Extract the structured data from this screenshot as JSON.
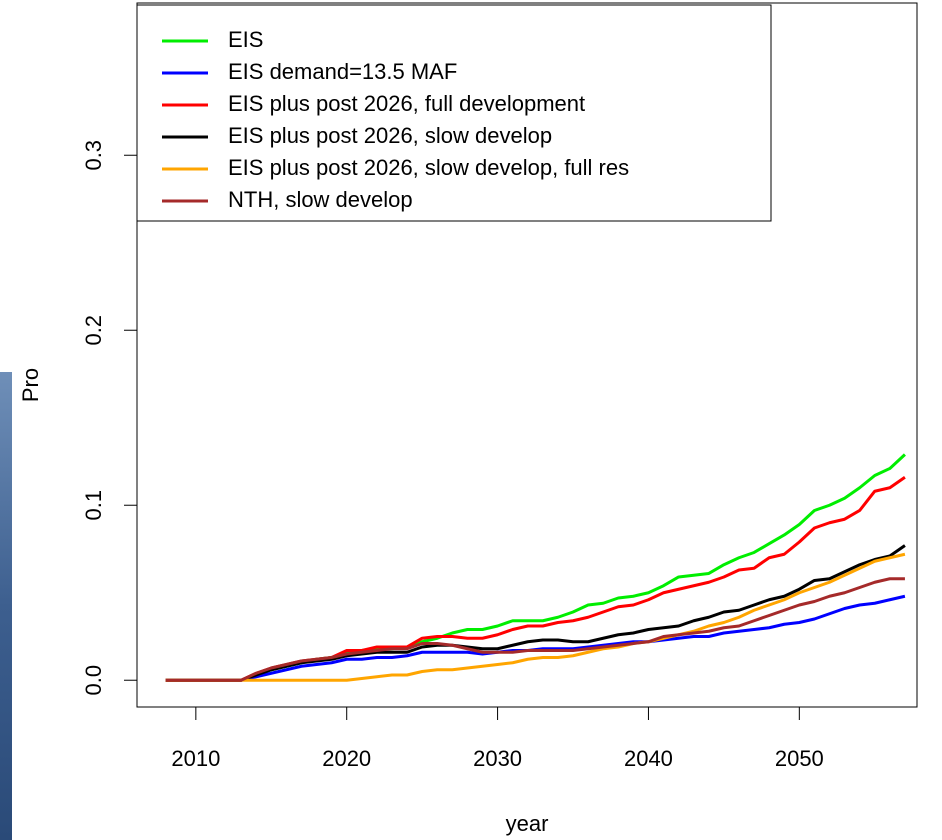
{
  "chart_data": {
    "type": "line",
    "xlabel": "year",
    "ylabel": "Pro",
    "x": [
      2008,
      2009,
      2010,
      2011,
      2012,
      2013,
      2014,
      2015,
      2016,
      2017,
      2018,
      2019,
      2020,
      2021,
      2022,
      2023,
      2024,
      2025,
      2026,
      2027,
      2028,
      2029,
      2030,
      2031,
      2032,
      2033,
      2034,
      2035,
      2036,
      2037,
      2038,
      2039,
      2040,
      2041,
      2042,
      2043,
      2044,
      2045,
      2046,
      2047,
      2048,
      2049,
      2050,
      2051,
      2052,
      2053,
      2054,
      2055,
      2056,
      2057
    ],
    "series": [
      {
        "name": "EIS",
        "color": "#00ee00",
        "values": [
          0,
          0,
          0,
          0,
          0,
          0,
          0.003,
          0.006,
          0.008,
          0.01,
          0.012,
          0.013,
          0.016,
          0.017,
          0.018,
          0.018,
          0.019,
          0.022,
          0.024,
          0.027,
          0.029,
          0.029,
          0.031,
          0.034,
          0.034,
          0.034,
          0.036,
          0.039,
          0.043,
          0.044,
          0.047,
          0.048,
          0.05,
          0.054,
          0.059,
          0.06,
          0.061,
          0.066,
          0.07,
          0.073,
          0.078,
          0.083,
          0.089,
          0.097,
          0.1,
          0.104,
          0.11,
          0.117,
          0.121,
          0.129
        ]
      },
      {
        "name": "EIS demand=13.5 MAF",
        "color": "#0000ff",
        "values": [
          0,
          0,
          0,
          0,
          0,
          0,
          0.002,
          0.004,
          0.006,
          0.008,
          0.009,
          0.01,
          0.012,
          0.012,
          0.013,
          0.013,
          0.014,
          0.016,
          0.016,
          0.016,
          0.016,
          0.015,
          0.016,
          0.017,
          0.017,
          0.018,
          0.018,
          0.018,
          0.019,
          0.02,
          0.021,
          0.022,
          0.022,
          0.023,
          0.024,
          0.025,
          0.025,
          0.027,
          0.028,
          0.029,
          0.03,
          0.032,
          0.033,
          0.035,
          0.038,
          0.041,
          0.043,
          0.044,
          0.046,
          0.048
        ]
      },
      {
        "name": "EIS plus post 2026, full development",
        "color": "#ff0000",
        "values": [
          0,
          0,
          0,
          0,
          0,
          0,
          0.004,
          0.007,
          0.009,
          0.011,
          0.012,
          0.013,
          0.017,
          0.017,
          0.019,
          0.019,
          0.019,
          0.024,
          0.025,
          0.025,
          0.024,
          0.024,
          0.026,
          0.029,
          0.031,
          0.031,
          0.033,
          0.034,
          0.036,
          0.039,
          0.042,
          0.043,
          0.046,
          0.05,
          0.052,
          0.054,
          0.056,
          0.059,
          0.063,
          0.064,
          0.07,
          0.072,
          0.079,
          0.087,
          0.09,
          0.092,
          0.097,
          0.108,
          0.11,
          0.116
        ]
      },
      {
        "name": "EIS plus post 2026, slow develop",
        "color": "#000000",
        "values": [
          0,
          0,
          0,
          0,
          0,
          0,
          0.003,
          0.006,
          0.008,
          0.01,
          0.011,
          0.012,
          0.014,
          0.015,
          0.016,
          0.016,
          0.016,
          0.019,
          0.02,
          0.02,
          0.019,
          0.018,
          0.018,
          0.02,
          0.022,
          0.023,
          0.023,
          0.022,
          0.022,
          0.024,
          0.026,
          0.027,
          0.029,
          0.03,
          0.031,
          0.034,
          0.036,
          0.039,
          0.04,
          0.043,
          0.046,
          0.048,
          0.052,
          0.057,
          0.058,
          0.062,
          0.066,
          0.069,
          0.071,
          0.077
        ]
      },
      {
        "name": "EIS plus post 2026, slow develop, full res",
        "color": "#ffa500",
        "values": [
          0,
          0,
          0,
          0,
          0,
          0,
          0,
          0,
          0,
          0,
          0,
          0,
          0,
          0.001,
          0.002,
          0.003,
          0.003,
          0.005,
          0.006,
          0.006,
          0.007,
          0.008,
          0.009,
          0.01,
          0.012,
          0.013,
          0.013,
          0.014,
          0.016,
          0.018,
          0.019,
          0.021,
          0.022,
          0.024,
          0.026,
          0.028,
          0.031,
          0.033,
          0.036,
          0.04,
          0.043,
          0.046,
          0.05,
          0.053,
          0.056,
          0.06,
          0.064,
          0.068,
          0.07,
          0.072
        ]
      },
      {
        "name": "NTH, slow develop",
        "color": "#a52a2a",
        "values": [
          0,
          0,
          0,
          0,
          0,
          0,
          0.004,
          0.007,
          0.009,
          0.011,
          0.012,
          0.013,
          0.015,
          0.016,
          0.017,
          0.018,
          0.018,
          0.021,
          0.021,
          0.02,
          0.018,
          0.016,
          0.016,
          0.016,
          0.017,
          0.017,
          0.017,
          0.017,
          0.018,
          0.019,
          0.02,
          0.021,
          0.022,
          0.025,
          0.026,
          0.027,
          0.028,
          0.03,
          0.031,
          0.034,
          0.037,
          0.04,
          0.043,
          0.045,
          0.048,
          0.05,
          0.053,
          0.056,
          0.058,
          0.058
        ]
      }
    ],
    "xlim": [
      2006.1,
      2057.8
    ],
    "xticks": [
      2010,
      2020,
      2030,
      2040,
      2050
    ],
    "ylim": [
      -0.0153,
      0.387
    ],
    "yticks": [
      {
        "value": 0,
        "label": "0.0"
      },
      0.1,
      0.2,
      0.3
    ],
    "legend": "topleft"
  }
}
